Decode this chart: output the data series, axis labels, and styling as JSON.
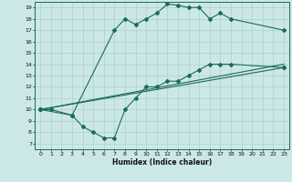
{
  "xlabel": "Humidex (Indice chaleur)",
  "ylabel": "",
  "bg_color": "#cce8e6",
  "grid_color": "#aacfcc",
  "line_color": "#1a6b5a",
  "xlim": [
    -0.5,
    23.5
  ],
  "ylim": [
    6.5,
    19.5
  ],
  "xticks": [
    0,
    1,
    2,
    3,
    4,
    5,
    6,
    7,
    8,
    9,
    10,
    11,
    12,
    13,
    14,
    15,
    16,
    17,
    18,
    19,
    20,
    21,
    22,
    23
  ],
  "yticks": [
    7,
    8,
    9,
    10,
    11,
    12,
    13,
    14,
    15,
    16,
    17,
    18,
    19
  ],
  "line1_x": [
    0,
    1,
    3,
    7,
    8,
    9,
    10,
    11,
    12,
    13,
    14,
    15,
    16,
    17,
    18,
    23
  ],
  "line1_y": [
    10,
    10,
    9.5,
    17,
    18,
    17.5,
    18,
    18.5,
    19.3,
    19.2,
    19,
    19,
    18,
    18.5,
    18,
    17
  ],
  "line2_x": [
    0,
    3,
    4,
    5,
    6,
    7,
    8,
    9,
    10,
    11,
    12,
    13,
    14,
    15,
    16,
    17,
    18,
    23
  ],
  "line2_y": [
    10,
    9.5,
    8.5,
    8,
    7.5,
    7.5,
    10,
    11,
    12,
    12,
    12.5,
    12.5,
    13,
    13.5,
    14,
    14,
    14,
    13.7
  ],
  "line3_x": [
    0,
    23
  ],
  "line3_y": [
    10,
    13.7
  ],
  "line4_x": [
    0,
    23
  ],
  "line4_y": [
    10,
    14
  ]
}
